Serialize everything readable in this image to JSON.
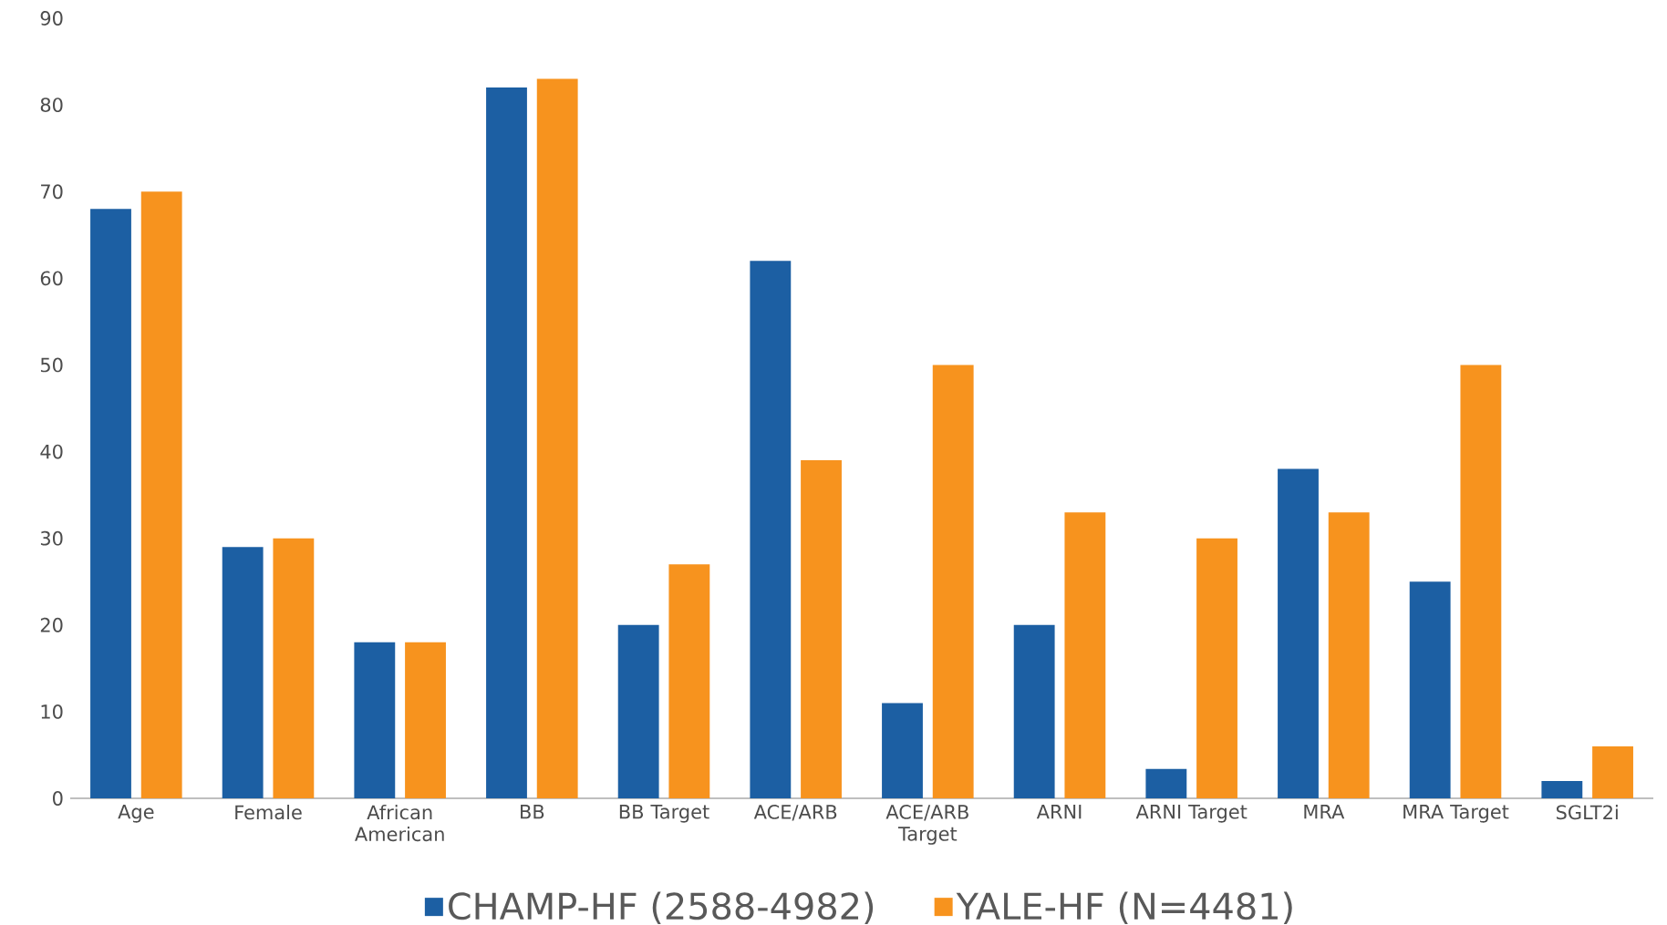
{
  "chart_data": {
    "type": "bar",
    "categories": [
      "Age",
      "Female",
      "African American",
      "BB",
      "BB Target",
      "ACE/ARB",
      "ACE/ARB Target",
      "ARNI",
      "ARNI Target",
      "MRA",
      "MRA Target",
      "SGLT2i"
    ],
    "series": [
      {
        "name": "CHAMP-HF (2588-4982)",
        "color": "#1c5fa3",
        "values": [
          68,
          29,
          18,
          82,
          20,
          62,
          11,
          20,
          3.4,
          38,
          25,
          2
        ]
      },
      {
        "name": "YALE-HF (N=4481)",
        "color": "#f7931e",
        "values": [
          70,
          30,
          18,
          83,
          27,
          39,
          50,
          33,
          30,
          33,
          50,
          6
        ]
      }
    ],
    "ylim": [
      0,
      90
    ],
    "yticks": [
      0,
      10,
      20,
      30,
      40,
      50,
      60,
      70,
      80,
      90
    ],
    "legend": "bottom"
  }
}
